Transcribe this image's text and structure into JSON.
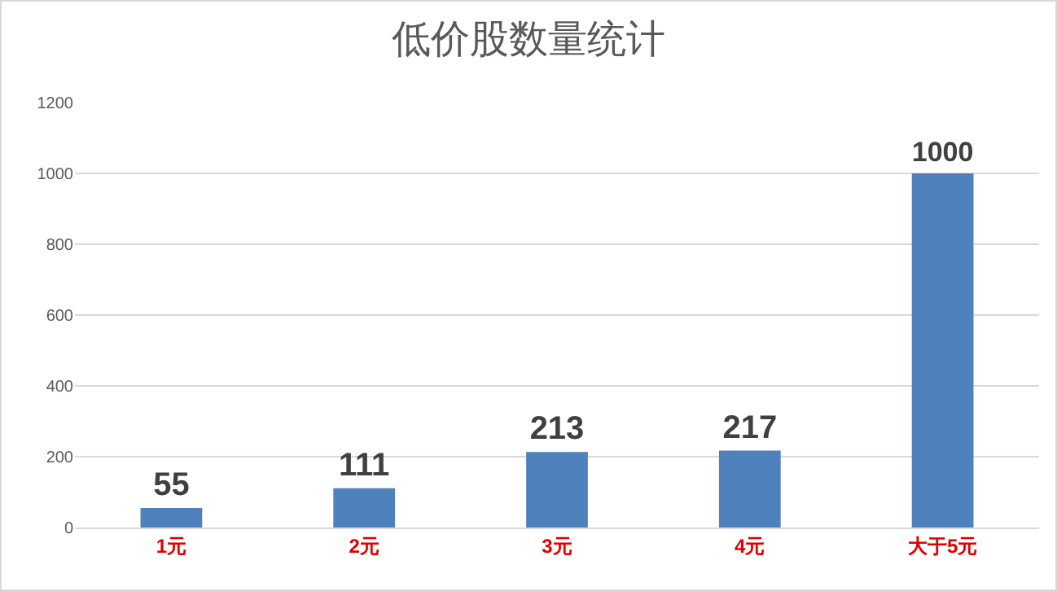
{
  "chart_data": {
    "type": "bar",
    "title": "低价股数量统计",
    "categories": [
      "1元",
      "2元",
      "3元",
      "4元",
      "大于5元"
    ],
    "values": [
      55,
      111,
      213,
      217,
      1000
    ],
    "color": "#4f81bd",
    "ylim": [
      0,
      1200
    ],
    "yticks": [
      0,
      200,
      400,
      600,
      800,
      1000,
      1200
    ],
    "grid": "y",
    "data_labels": true,
    "legend": false
  }
}
